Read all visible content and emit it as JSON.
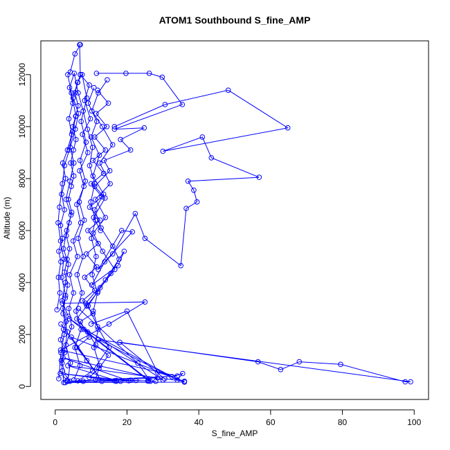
{
  "chart_data": {
    "type": "line",
    "title": "ATOM1 Southbound S_fine_AMP",
    "xlabel": "S_fine_AMP",
    "ylabel": "Altitude (m)",
    "xlim": [
      -4,
      104
    ],
    "ylim": [
      -500,
      13300
    ],
    "x_ticks": [
      "0",
      "20",
      "40",
      "60",
      "80",
      "100"
    ],
    "y_ticks": [
      "0",
      "2000",
      "4000",
      "6000",
      "8000",
      "10000",
      "12000"
    ],
    "grid": false,
    "legend": "none",
    "color": "#0000ff",
    "marker": "open-circle",
    "series": [
      {
        "points": [
          [
            3.5,
            200
          ],
          [
            4.2,
            900
          ],
          [
            3.0,
            1600
          ],
          [
            4.6,
            2300
          ],
          [
            3.8,
            3000
          ],
          [
            5.1,
            3600
          ],
          [
            4.0,
            4300
          ],
          [
            6.2,
            5000
          ],
          [
            5.0,
            5600
          ],
          [
            7.1,
            6300
          ],
          [
            6.0,
            7000
          ],
          [
            8.0,
            7700
          ],
          [
            6.8,
            8300
          ],
          [
            9.1,
            9000
          ],
          [
            7.6,
            9700
          ],
          [
            9.8,
            10300
          ],
          [
            8.2,
            11000
          ],
          [
            9.5,
            11600
          ],
          [
            7.0,
            12000
          ],
          [
            6.8,
            13150
          ],
          [
            7.0,
            13150
          ],
          [
            5.5,
            12800
          ],
          [
            4.2,
            12100
          ],
          [
            3.5,
            12000
          ],
          [
            4.5,
            11300
          ],
          [
            5.8,
            10400
          ],
          [
            4.8,
            9800
          ],
          [
            3.9,
            9100
          ],
          [
            2.6,
            8500
          ],
          [
            2.0,
            7800
          ],
          [
            1.2,
            6900
          ],
          [
            0.8,
            6300
          ],
          [
            1.5,
            5600
          ],
          [
            2.4,
            4900
          ],
          [
            1.8,
            4200
          ],
          [
            2.9,
            3500
          ],
          [
            2.2,
            2800
          ],
          [
            3.4,
            2100
          ],
          [
            2.6,
            1400
          ],
          [
            1.9,
            900
          ],
          [
            3.0,
            400
          ],
          [
            4.1,
            200
          ],
          [
            6.3,
            220
          ],
          [
            10.4,
            600
          ],
          [
            15.0,
            1500
          ],
          [
            11.8,
            2300
          ],
          [
            9.2,
            3100
          ],
          [
            12.5,
            3800
          ],
          [
            16.6,
            4500
          ],
          [
            13.2,
            5200
          ],
          [
            10.6,
            5900
          ],
          [
            14.0,
            6500
          ],
          [
            11.2,
            7200
          ],
          [
            15.3,
            7800
          ],
          [
            12.4,
            8600
          ],
          [
            16.0,
            9300
          ],
          [
            13.1,
            10000
          ],
          [
            10.2,
            10600
          ],
          [
            12.0,
            11300
          ],
          [
            14.5,
            11800
          ]
        ]
      },
      {
        "points": [
          [
            16.5,
            10000
          ],
          [
            30.6,
            10850
          ],
          [
            48.2,
            11400
          ],
          [
            64.8,
            9950
          ],
          [
            30.0,
            9050
          ],
          [
            41.0,
            9600
          ],
          [
            43.5,
            8800
          ],
          [
            56.8,
            8050
          ],
          [
            37.0,
            7900
          ],
          [
            38.6,
            7550
          ],
          [
            39.5,
            7100
          ],
          [
            36.5,
            6850
          ],
          [
            35.0,
            4650
          ],
          [
            25.0,
            5700
          ],
          [
            22.3,
            6650
          ],
          [
            16.0,
            5100
          ],
          [
            12.0,
            4500
          ],
          [
            18.5,
            6000
          ],
          [
            21.5,
            5950
          ],
          [
            13.8,
            4800
          ],
          [
            10.2,
            3900
          ],
          [
            17.5,
            4650
          ],
          [
            19.2,
            5200
          ],
          [
            14.0,
            4100
          ],
          [
            8.5,
            3200
          ]
        ]
      },
      {
        "points": [
          [
            11.5,
            12050
          ],
          [
            19.7,
            12050
          ],
          [
            26.2,
            12050
          ],
          [
            29.8,
            11900
          ],
          [
            35.4,
            10850
          ],
          [
            16.5,
            9900
          ],
          [
            24.8,
            9950
          ],
          [
            18.2,
            9500
          ],
          [
            21.0,
            9100
          ],
          [
            13.6,
            8700
          ],
          [
            15.2,
            8300
          ],
          [
            11.0,
            7700
          ],
          [
            13.9,
            7250
          ],
          [
            10.7,
            6500
          ],
          [
            12.6,
            6000
          ]
        ]
      },
      {
        "points": [
          [
            10.0,
            2400
          ],
          [
            20.0,
            2900
          ],
          [
            28.5,
            550
          ],
          [
            36.0,
            200
          ],
          [
            30.5,
            300
          ],
          [
            18.0,
            1700
          ],
          [
            56.5,
            950
          ],
          [
            62.8,
            650
          ],
          [
            68.0,
            950
          ],
          [
            79.5,
            850
          ],
          [
            97.5,
            180
          ],
          [
            99.0,
            180
          ],
          [
            12.0,
            1800
          ],
          [
            34.0,
            250
          ],
          [
            35.5,
            500
          ],
          [
            32.5,
            380
          ],
          [
            8.0,
            2200
          ],
          [
            26.5,
            200
          ],
          [
            23.0,
            900
          ],
          [
            6.5,
            3000
          ]
        ]
      },
      {
        "points": [
          [
            7.8,
            200
          ],
          [
            17.0,
            200
          ],
          [
            22.5,
            230
          ],
          [
            25.8,
            210
          ],
          [
            28.0,
            200
          ],
          [
            21.0,
            240
          ],
          [
            18.2,
            200
          ],
          [
            16.5,
            220
          ],
          [
            9.5,
            350
          ],
          [
            12.2,
            700
          ],
          [
            14.8,
            1200
          ],
          [
            11.3,
            1600
          ],
          [
            9.0,
            2100
          ],
          [
            6.0,
            2600
          ],
          [
            8.8,
            3100
          ],
          [
            11.9,
            3650
          ],
          [
            15.5,
            4350
          ],
          [
            17.8,
            4900
          ],
          [
            16.0,
            5400
          ],
          [
            12.8,
            6100
          ],
          [
            11.0,
            6800
          ],
          [
            13.5,
            7400
          ],
          [
            10.5,
            8100
          ],
          [
            12.3,
            8900
          ],
          [
            10.0,
            9600
          ],
          [
            11.6,
            10200
          ],
          [
            9.2,
            10900
          ],
          [
            10.8,
            11500
          ]
        ]
      },
      {
        "points": [
          [
            1.0,
            300
          ],
          [
            1.6,
            1300
          ],
          [
            2.5,
            2000
          ],
          [
            3.6,
            2700
          ],
          [
            1.9,
            3300
          ],
          [
            2.8,
            4000
          ],
          [
            3.7,
            4700
          ],
          [
            2.3,
            5300
          ],
          [
            3.2,
            6000
          ],
          [
            4.4,
            6600
          ],
          [
            3.0,
            7200
          ],
          [
            4.1,
            7900
          ],
          [
            5.2,
            8600
          ],
          [
            4.2,
            9200
          ],
          [
            5.6,
            9900
          ],
          [
            6.5,
            10500
          ],
          [
            5.0,
            11100
          ],
          [
            6.2,
            11700
          ],
          [
            7.5,
            12000
          ],
          [
            8.8,
            11100
          ],
          [
            7.2,
            10200
          ],
          [
            8.6,
            9400
          ],
          [
            6.9,
            8700
          ],
          [
            8.4,
            7900
          ],
          [
            6.7,
            7100
          ],
          [
            8.1,
            6400
          ],
          [
            6.4,
            5700
          ],
          [
            7.8,
            5000
          ],
          [
            6.1,
            4300
          ],
          [
            7.5,
            3600
          ],
          [
            5.8,
            2900
          ],
          [
            7.2,
            2200
          ],
          [
            5.5,
            1500
          ],
          [
            6.9,
            800
          ],
          [
            5.2,
            250
          ]
        ]
      },
      {
        "points": [
          [
            2.0,
            3200
          ],
          [
            25.0,
            3250
          ],
          [
            15.0,
            2400
          ],
          [
            1.5,
            1400
          ],
          [
            34.0,
            400
          ],
          [
            3.2,
            200
          ],
          [
            26.0,
            220
          ],
          [
            4.0,
            2600
          ],
          [
            30.0,
            250
          ],
          [
            2.2,
            1100
          ],
          [
            20.5,
            220
          ],
          [
            1.4,
            500
          ],
          [
            17.0,
            230
          ],
          [
            3.5,
            800
          ],
          [
            28.5,
            330
          ],
          [
            2.8,
            150
          ],
          [
            36.0,
            170
          ],
          [
            4.5,
            1900
          ],
          [
            13.0,
            200
          ],
          [
            1.6,
            2400
          ]
        ]
      },
      {
        "points": [
          [
            0.5,
            2950
          ],
          [
            1.3,
            3600
          ],
          [
            0.9,
            4200
          ],
          [
            1.6,
            4800
          ],
          [
            1.0,
            5200
          ],
          [
            2.0,
            5700
          ],
          [
            1.5,
            6200
          ],
          [
            2.6,
            6800
          ],
          [
            1.8,
            7400
          ],
          [
            2.9,
            8000
          ],
          [
            2.1,
            8600
          ],
          [
            3.4,
            9100
          ],
          [
            4.6,
            9700
          ],
          [
            3.8,
            10300
          ],
          [
            4.9,
            10900
          ],
          [
            4.0,
            11500
          ],
          [
            5.3,
            12050
          ],
          [
            6.4,
            11300
          ],
          [
            7.8,
            10600
          ],
          [
            9.0,
            9900
          ],
          [
            10.4,
            9200
          ],
          [
            9.6,
            8500
          ],
          [
            11.0,
            7800
          ],
          [
            9.9,
            7100
          ],
          [
            11.2,
            6400
          ],
          [
            10.1,
            5700
          ],
          [
            11.4,
            5000
          ],
          [
            10.3,
            4300
          ],
          [
            11.8,
            3600
          ],
          [
            10.6,
            2900
          ],
          [
            12.0,
            2200
          ],
          [
            10.8,
            1500
          ],
          [
            12.4,
            800
          ],
          [
            11.2,
            250
          ]
        ]
      },
      {
        "points": [
          [
            2.4,
            150
          ],
          [
            2.0,
            600
          ],
          [
            1.7,
            1000
          ],
          [
            2.6,
            1300
          ],
          [
            1.5,
            1800
          ],
          [
            2.3,
            2200
          ],
          [
            3.0,
            2500
          ],
          [
            2.1,
            3000
          ],
          [
            2.8,
            3400
          ],
          [
            3.5,
            3900
          ],
          [
            2.6,
            4400
          ],
          [
            3.3,
            4900
          ],
          [
            4.0,
            5300
          ],
          [
            3.1,
            5800
          ],
          [
            3.9,
            6300
          ],
          [
            4.6,
            6700
          ],
          [
            3.7,
            7200
          ],
          [
            4.5,
            7700
          ],
          [
            5.2,
            8100
          ],
          [
            4.3,
            8600
          ],
          [
            5.1,
            9100
          ],
          [
            5.8,
            9500
          ],
          [
            4.9,
            10000
          ],
          [
            5.7,
            10400
          ],
          [
            6.4,
            10800
          ],
          [
            5.5,
            11300
          ],
          [
            6.3,
            11700
          ],
          [
            7.0,
            12000
          ]
        ]
      },
      {
        "points": [
          [
            8.8,
            1000
          ],
          [
            6.0,
            1500
          ],
          [
            9.5,
            1900
          ],
          [
            7.0,
            2500
          ],
          [
            10.5,
            2800
          ],
          [
            7.6,
            3300
          ],
          [
            11.0,
            3700
          ],
          [
            8.2,
            4200
          ],
          [
            11.6,
            4600
          ],
          [
            8.7,
            5100
          ],
          [
            12.0,
            5500
          ],
          [
            9.1,
            6000
          ],
          [
            12.5,
            6400
          ],
          [
            9.6,
            6900
          ],
          [
            13.0,
            7300
          ],
          [
            10.0,
            7800
          ],
          [
            13.5,
            8200
          ],
          [
            10.5,
            8700
          ],
          [
            14.0,
            9100
          ],
          [
            11.0,
            9600
          ],
          [
            14.4,
            10000
          ],
          [
            11.4,
            10500
          ],
          [
            14.8,
            10900
          ],
          [
            11.8,
            11400
          ]
        ]
      }
    ]
  }
}
